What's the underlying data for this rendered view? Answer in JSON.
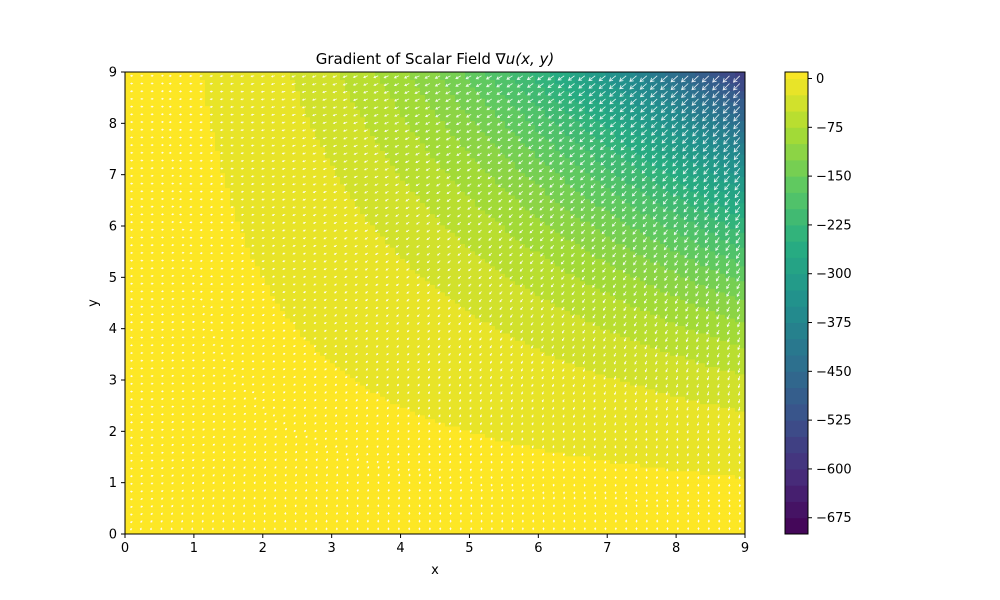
{
  "chart_data": {
    "type": "heatmap",
    "title_prefix": "Gradient of Scalar Field ∇",
    "title_math": "u(x, y)",
    "xlabel": "x",
    "ylabel": "y",
    "xlim": [
      0,
      9
    ],
    "ylim": [
      0,
      9
    ],
    "x_ticks": [
      "0",
      "1",
      "2",
      "3",
      "4",
      "5",
      "6",
      "7",
      "8",
      "9"
    ],
    "y_ticks": [
      "0",
      "1",
      "2",
      "3",
      "4",
      "5",
      "6",
      "7",
      "8",
      "9"
    ],
    "overlay": "quiver",
    "arrow_color": "#ffffff",
    "colormap": "viridis",
    "colorbar": {
      "range": [
        -700,
        10
      ],
      "ticks": [
        "0",
        "−75",
        "−150",
        "−225",
        "−300",
        "−375",
        "−450",
        "−525",
        "−600",
        "−675"
      ],
      "tick_values": [
        0,
        -75,
        -150,
        -225,
        -300,
        -375,
        -450,
        -525,
        -600,
        -675
      ]
    }
  }
}
